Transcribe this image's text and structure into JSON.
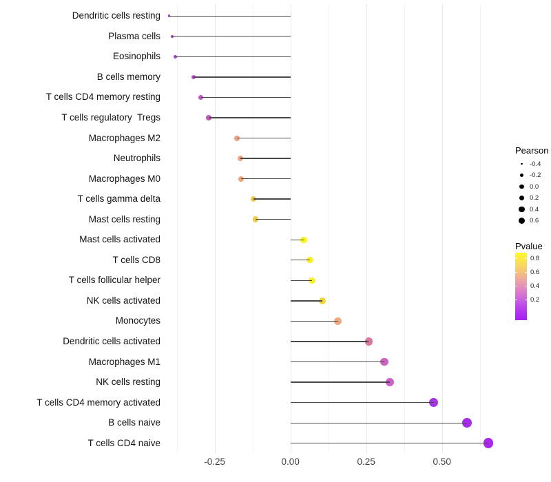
{
  "chart_data": {
    "type": "scatter",
    "variant": "lollipop",
    "title": "",
    "xlabel": "",
    "ylabel": "",
    "grid": "vertical-gridlines-only",
    "legend_position": "right",
    "xlim": [
      -0.42,
      0.74
    ],
    "baseline_x": 0,
    "x_ticks": [
      {
        "value": -0.25,
        "label": "-0.25"
      },
      {
        "value": 0.0,
        "label": "0.00"
      },
      {
        "value": 0.25,
        "label": "0.25"
      },
      {
        "value": 0.5,
        "label": "0.50"
      }
    ],
    "x_minor_gridlines": [
      -0.375,
      -0.125,
      0.125,
      0.375,
      0.625
    ],
    "points": [
      {
        "label": "Dendritic cells resting",
        "pearson": -0.4,
        "color": "#A139C7",
        "size": 3.6
      },
      {
        "label": "Plasma cells",
        "pearson": -0.39,
        "color": "#A83CC8",
        "size": 4.4
      },
      {
        "label": "Eosinophils",
        "pearson": -0.38,
        "color": "#AC40C5",
        "size": 5.0
      },
      {
        "label": "B cells memory",
        "pearson": -0.32,
        "color": "#BF4FC7",
        "size": 6.6
      },
      {
        "label": "T cells CD4 memory resting",
        "pearson": -0.295,
        "color": "#C354C4",
        "size": 7.0
      },
      {
        "label": "T cells regulatory  Tregs",
        "pearson": -0.27,
        "color": "#C85ABF",
        "size": 7.4
      },
      {
        "label": "Macrophages M2",
        "pearson": -0.177,
        "color": "#EFA182",
        "size": 8.0
      },
      {
        "label": "Neutrophils",
        "pearson": -0.165,
        "color": "#F0A47D",
        "size": 8.1
      },
      {
        "label": "Macrophages M0",
        "pearson": -0.163,
        "color": "#F0A57B",
        "size": 8.2
      },
      {
        "label": "T cells gamma delta",
        "pearson": -0.122,
        "color": "#EFC851",
        "size": 8.6
      },
      {
        "label": "Mast cells resting",
        "pearson": -0.115,
        "color": "#EFCC4C",
        "size": 8.7
      },
      {
        "label": "Mast cells activated",
        "pearson": 0.044,
        "color": "#FAF519",
        "size": 9.3
      },
      {
        "label": "T cells CD8",
        "pearson": 0.064,
        "color": "#F9F125",
        "size": 9.4
      },
      {
        "label": "T cells follicular helper",
        "pearson": 0.071,
        "color": "#F8EF2C",
        "size": 9.5
      },
      {
        "label": "NK cells activated",
        "pearson": 0.105,
        "color": "#F1D63B",
        "size": 10.0
      },
      {
        "label": "Monocytes",
        "pearson": 0.157,
        "color": "#F0A980",
        "size": 10.7
      },
      {
        "label": "Dendritic cells activated",
        "pearson": 0.258,
        "color": "#D9779F",
        "size": 11.3
      },
      {
        "label": "Macrophages M1",
        "pearson": 0.31,
        "color": "#CC62BF",
        "size": 11.7
      },
      {
        "label": "NK cells resting",
        "pearson": 0.328,
        "color": "#CE61C9",
        "size": 11.9
      },
      {
        "label": "T cells CD4 memory activated",
        "pearson": 0.473,
        "color": "#A337E3",
        "size": 13.0
      },
      {
        "label": "B cells naive",
        "pearson": 0.583,
        "color": "#A52CEA",
        "size": 14.0
      },
      {
        "label": "T cells CD4 naive",
        "pearson": 0.653,
        "color": "#A928E9",
        "size": 14.8
      }
    ],
    "legend_size": {
      "title": "Pearson",
      "items": [
        {
          "label": "-0.4",
          "size": 2.8
        },
        {
          "label": "-0.2",
          "size": 5.0
        },
        {
          "label": "0.0",
          "size": 6.6
        },
        {
          "label": "0.2",
          "size": 7.6
        },
        {
          "label": "0.4",
          "size": 8.6
        },
        {
          "label": "0.6",
          "size": 9.4
        }
      ]
    },
    "legend_color": {
      "title": "Pvalue",
      "ticks": [
        {
          "label": "0.8",
          "pos": 0.082
        },
        {
          "label": "0.6",
          "pos": 0.286
        },
        {
          "label": "0.4",
          "pos": 0.49
        },
        {
          "label": "0.2",
          "pos": 0.694
        }
      ],
      "gradient": [
        {
          "pos": 0.0,
          "color": "#FDFB28"
        },
        {
          "pos": 0.12,
          "color": "#F9E44F"
        },
        {
          "pos": 0.28,
          "color": "#F6C379"
        },
        {
          "pos": 0.42,
          "color": "#ECA2A6"
        },
        {
          "pos": 0.56,
          "color": "#DE82C8"
        },
        {
          "pos": 0.72,
          "color": "#C75BE2"
        },
        {
          "pos": 0.87,
          "color": "#B236EF"
        },
        {
          "pos": 1.0,
          "color": "#A51DF2"
        }
      ]
    }
  }
}
